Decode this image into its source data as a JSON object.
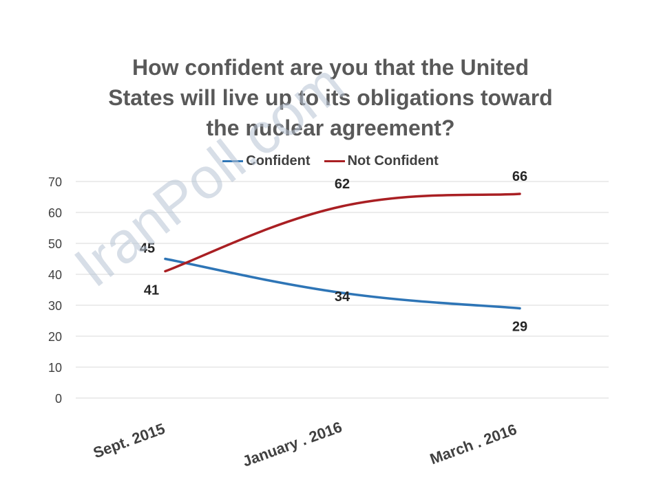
{
  "chart_data": {
    "type": "line",
    "title_lines": [
      "How confident are you that the United",
      "States will live up to its obligations toward",
      "the nuclear agreement?"
    ],
    "categories": [
      "Sept. 2015",
      "January . 2016",
      "March . 2016"
    ],
    "series": [
      {
        "name": "Confident",
        "color": "#2E75B6",
        "values": [
          45,
          34,
          29
        ]
      },
      {
        "name": "Not Confident",
        "color": "#A91F23",
        "values": [
          41,
          62,
          66
        ]
      }
    ],
    "ylim": [
      0,
      70
    ],
    "yticks": [
      0,
      10,
      20,
      30,
      40,
      50,
      60,
      70
    ],
    "grid": true,
    "legend_position": "top"
  },
  "watermark": "IranPoll.com"
}
